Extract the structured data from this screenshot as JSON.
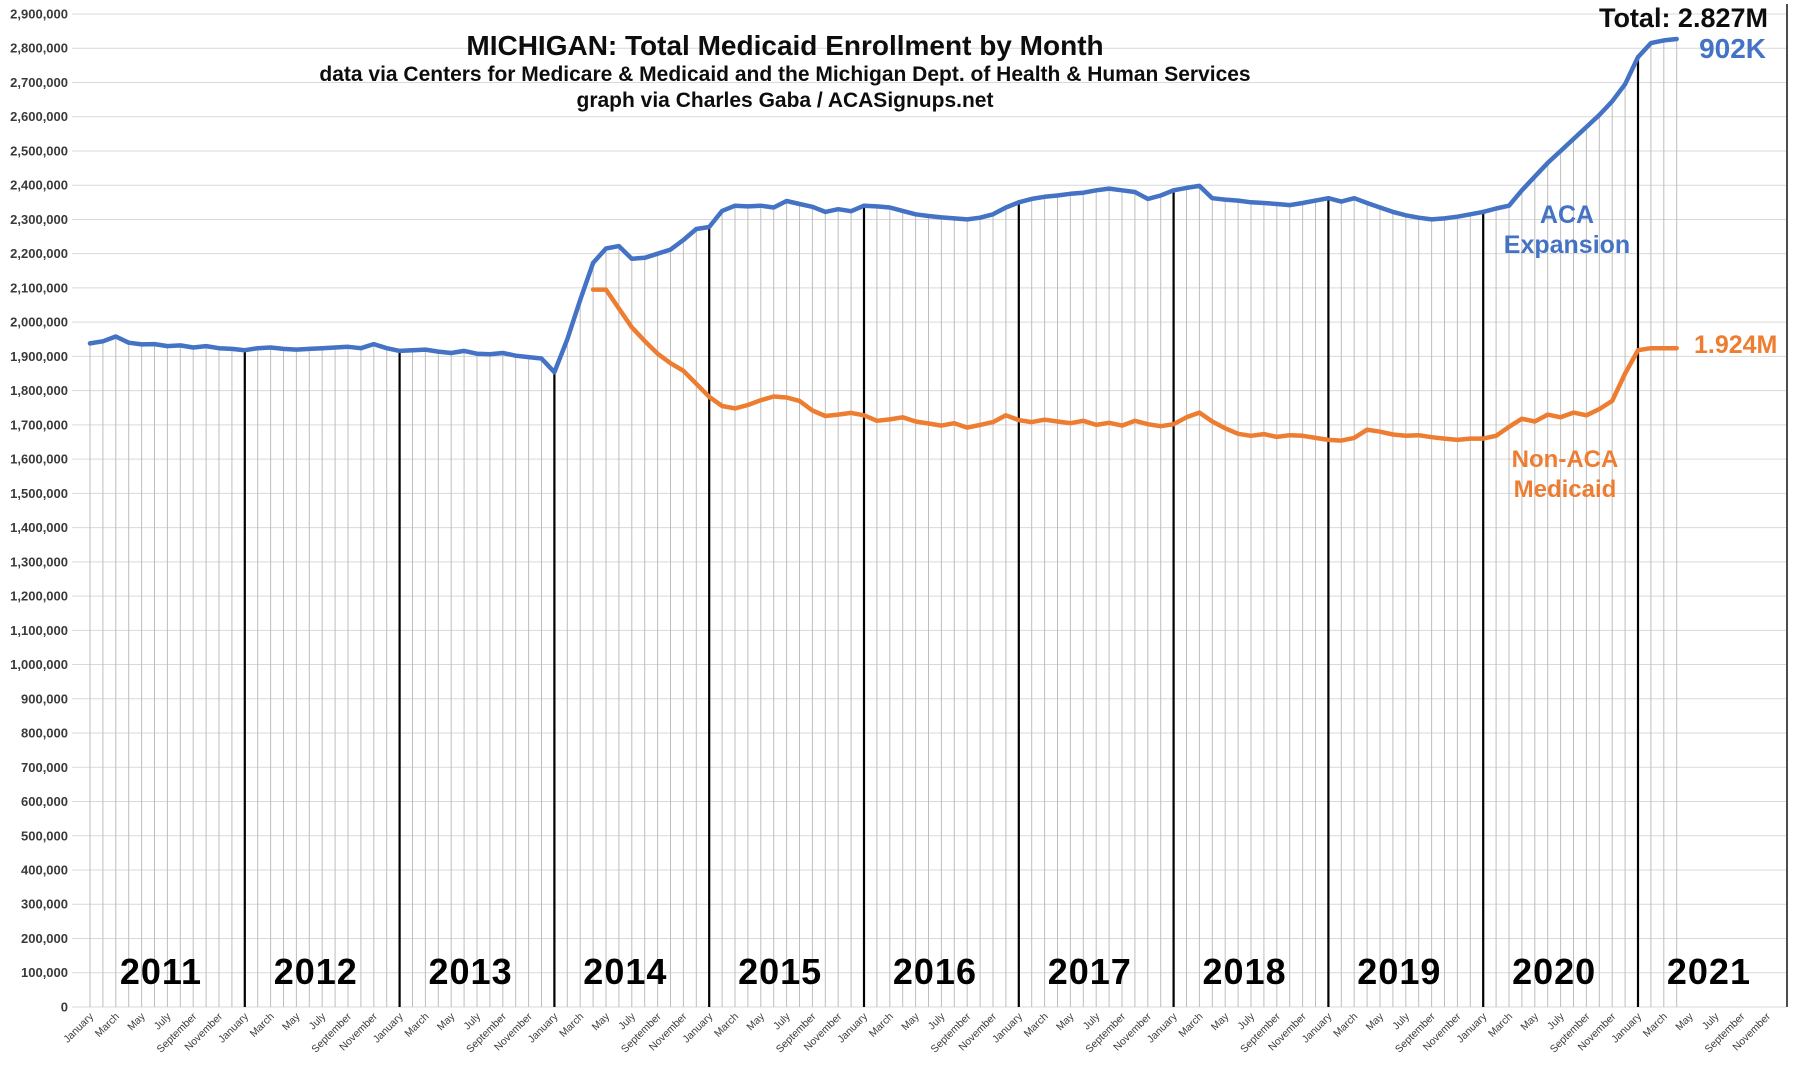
{
  "header": {
    "title": "MICHIGAN: Total Medicaid Enrollment by Month",
    "subtitle1": "data via Centers for Medicare & Medicaid and the Michigan Dept. of Health & Human Services",
    "subtitle2": "graph via Charles Gaba / ACASignups.net"
  },
  "annotations": {
    "total_label": "Total: 2.827M",
    "aca_value_label": "902K",
    "nonaca_value_label": "1.924M",
    "aca_series_label_line1": "ACA",
    "aca_series_label_line2": "Expansion",
    "nonaca_series_label_line1": "Non-ACA",
    "nonaca_series_label_line2": "Medicaid"
  },
  "colors": {
    "blue": "#4472C4",
    "orange": "#ED7D31",
    "gridline": "#d9d9d9",
    "dropline": "#bdbdbd",
    "year_separator": "#000000",
    "right_border": "#4d4d4d",
    "axis_text": "#3a3a3a"
  },
  "chart_data": {
    "type": "line",
    "title": "MICHIGAN: Total Medicaid Enrollment by Month",
    "x_range": {
      "start": "January 2011",
      "end_of_axis": "December 2021",
      "last_data_month": "April 2021",
      "months_total": 132
    },
    "y_axis": {
      "min": 0,
      "max": 2900000,
      "step": 100000,
      "grid": true
    },
    "years": [
      2011,
      2012,
      2013,
      2014,
      2015,
      2016,
      2017,
      2018,
      2019,
      2020,
      2021
    ],
    "month_label_cycle": [
      "January",
      "March",
      "May",
      "July",
      "September",
      "November"
    ],
    "year_separators": "vertical black line at January of each year 2012-2021",
    "legend_position": "inline right of lines",
    "series": [
      {
        "name": "Total Medicaid (Non-ACA + ACA Expansion)",
        "color": "#4472C4",
        "start_index": 0,
        "end_value_label": "Total: 2.827M / ACA Expansion portion 902K",
        "values": [
          1938000,
          1944000,
          1958000,
          1940000,
          1935000,
          1936000,
          1930000,
          1932000,
          1926000,
          1930000,
          1924000,
          1922000,
          1918000,
          1924000,
          1926000,
          1922000,
          1920000,
          1922000,
          1924000,
          1926000,
          1928000,
          1924000,
          1936000,
          1924000,
          1916000,
          1918000,
          1920000,
          1914000,
          1910000,
          1916000,
          1908000,
          1906000,
          1910000,
          1902000,
          1898000,
          1894000,
          1854000,
          1950000,
          2065000,
          2173000,
          2215000,
          2222000,
          2185000,
          2188000,
          2200000,
          2212000,
          2240000,
          2272000,
          2278000,
          2325000,
          2340000,
          2338000,
          2340000,
          2335000,
          2354000,
          2345000,
          2337000,
          2322000,
          2330000,
          2324000,
          2340000,
          2338000,
          2335000,
          2325000,
          2315000,
          2310000,
          2306000,
          2303000,
          2300000,
          2305000,
          2315000,
          2335000,
          2350000,
          2360000,
          2366000,
          2370000,
          2375000,
          2378000,
          2385000,
          2390000,
          2385000,
          2380000,
          2360000,
          2370000,
          2385000,
          2392000,
          2398000,
          2362000,
          2358000,
          2355000,
          2350000,
          2348000,
          2345000,
          2342000,
          2348000,
          2355000,
          2362000,
          2352000,
          2362000,
          2348000,
          2335000,
          2322000,
          2312000,
          2305000,
          2300000,
          2303000,
          2308000,
          2315000,
          2322000,
          2332000,
          2340000,
          2385000,
          2425000,
          2465000,
          2500000,
          2535000,
          2570000,
          2605000,
          2645000,
          2695000,
          2774000,
          2815000,
          2823000,
          2827000
        ]
      },
      {
        "name": "Non-ACA Medicaid",
        "color": "#ED7D31",
        "start_index": 39,
        "end_value_label": "1.924M",
        "values": [
          2095000,
          2095000,
          2040000,
          1985000,
          1945000,
          1908000,
          1880000,
          1858000,
          1820000,
          1782000,
          1755000,
          1748000,
          1758000,
          1772000,
          1783000,
          1780000,
          1770000,
          1742000,
          1726000,
          1730000,
          1735000,
          1728000,
          1712000,
          1716000,
          1722000,
          1710000,
          1704000,
          1698000,
          1705000,
          1692000,
          1700000,
          1708000,
          1728000,
          1714000,
          1708000,
          1715000,
          1710000,
          1705000,
          1712000,
          1700000,
          1706000,
          1698000,
          1712000,
          1702000,
          1696000,
          1702000,
          1722000,
          1736000,
          1710000,
          1690000,
          1674000,
          1668000,
          1673000,
          1665000,
          1670000,
          1668000,
          1662000,
          1656000,
          1654000,
          1662000,
          1686000,
          1680000,
          1672000,
          1668000,
          1670000,
          1664000,
          1660000,
          1656000,
          1660000,
          1660000,
          1668000,
          1694000,
          1718000,
          1710000,
          1730000,
          1722000,
          1736000,
          1728000,
          1746000,
          1770000,
          1850000,
          1918000,
          1924000,
          1924000,
          1924000
        ]
      }
    ]
  }
}
